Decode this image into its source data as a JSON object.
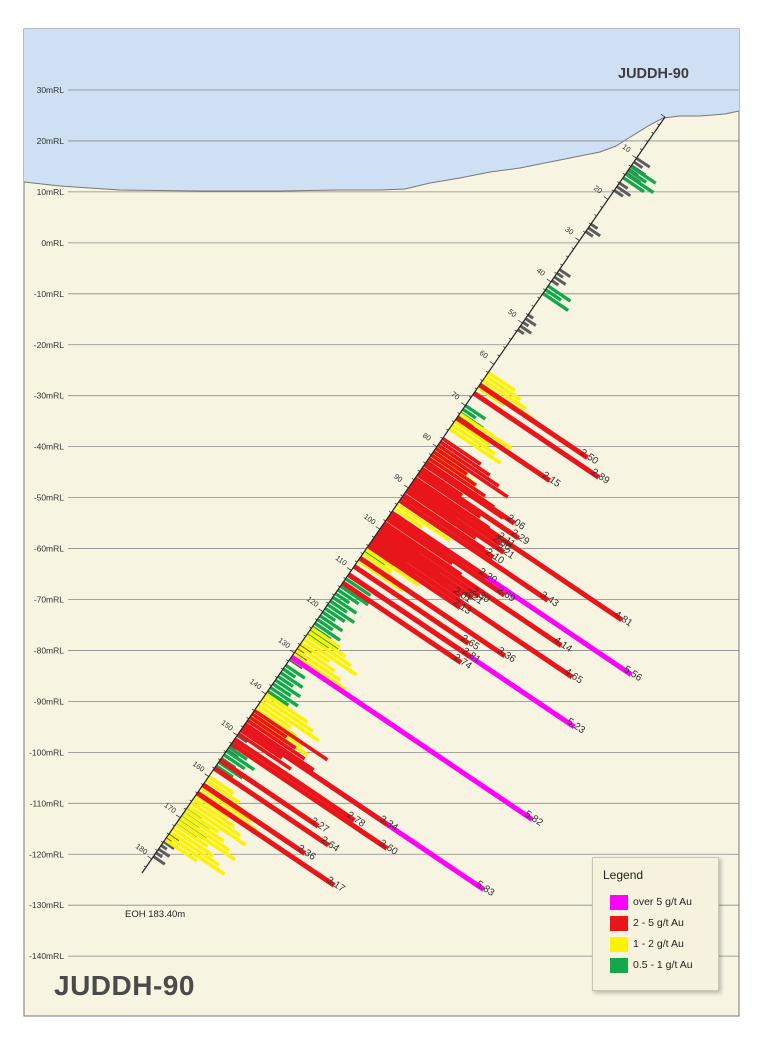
{
  "hole_id": "JUDDH-90",
  "eoh": "EOH 183.40m",
  "rl_labels": [
    "30mRL",
    "20mRL",
    "10mRL",
    "0mRL",
    "-10mRL",
    "-20mRL",
    "-30mRL",
    "-40mRL",
    "-50mRL",
    "-60mRL",
    "-70mRL",
    "-80mRL",
    "-90mRL",
    "-100mRL",
    "-110mRL",
    "-120mRL",
    "-130mRL",
    "-140mRL"
  ],
  "depth_labels": [
    "10",
    "20",
    "30",
    "40",
    "50",
    "60",
    "70",
    "80",
    "90",
    "100",
    "110",
    "120",
    "130",
    "140",
    "150",
    "160",
    "170",
    "180"
  ],
  "legend": {
    "title": "Legend",
    "items": [
      {
        "label": "over 5 g/t Au",
        "color": "#ff00ff"
      },
      {
        "label": "2 - 5 g/t Au",
        "color": "#e8161b"
      },
      {
        "label": "1 - 2 g/t Au",
        "color": "#fff200"
      },
      {
        "label": "0.5 - 1 g/t Au",
        "color": "#13a94b"
      }
    ]
  },
  "colors": {
    "sky": "#cfdff4",
    "ground": "#f7f4e2",
    "magenta": "#ff00ff",
    "red": "#e8161b",
    "yellow": "#fff200",
    "green": "#13a94b",
    "grey": "#5d5d5d"
  },
  "assay_labels": [
    {
      "grade": "over5",
      "depth": 96,
      "value": "5.56"
    },
    {
      "grade": "over5",
      "depth": 111,
      "value": "5.23"
    },
    {
      "grade": "over5",
      "depth": 131,
      "value": "5.82"
    },
    {
      "grade": "over5",
      "depth": 148,
      "value": "5.83"
    },
    {
      "grade": "2to5",
      "depth": 65,
      "value": "2.50"
    },
    {
      "grade": "2to5",
      "depth": 67,
      "value": "2.89"
    },
    {
      "grade": "2to5",
      "depth": 73,
      "value": "2.15"
    },
    {
      "grade": "2to5",
      "depth": 84,
      "value": "2.06"
    },
    {
      "grade": "2to5",
      "depth": 86,
      "value": "2.29"
    },
    {
      "grade": "2to5",
      "depth": 88,
      "value": "2.11"
    },
    {
      "grade": "2to5",
      "depth": 89,
      "value": "2.06"
    },
    {
      "grade": "2to5",
      "depth": 90,
      "value": "2.21"
    },
    {
      "grade": "2to5",
      "depth": 92,
      "value": "2.10"
    },
    {
      "grade": "2to5",
      "depth": 93,
      "value": "3.43"
    },
    {
      "grade": "2to5",
      "depth": 96,
      "value": "2.20"
    },
    {
      "grade": "2to5",
      "depth": 97,
      "value": "2.69"
    },
    {
      "grade": "2to5",
      "depth": 100,
      "value": "2.30"
    },
    {
      "grade": "2to5",
      "depth": 101,
      "value": "2.21"
    },
    {
      "grade": "2to5",
      "depth": 102,
      "value": "2.01"
    },
    {
      "grade": "2to5",
      "depth": 99,
      "value": "4.14"
    },
    {
      "grade": "2to5",
      "depth": 88,
      "value": "4.81"
    },
    {
      "grade": "2to5",
      "depth": 104,
      "value": "2.13"
    },
    {
      "grade": "2to5",
      "depth": 103,
      "value": "4.65"
    },
    {
      "grade": "2to5",
      "depth": 109,
      "value": "2.65"
    },
    {
      "grade": "2to5",
      "depth": 107,
      "value": "3.36"
    },
    {
      "grade": "2to5",
      "depth": 111,
      "value": "2.81"
    },
    {
      "grade": "2to5",
      "depth": 113,
      "value": "2.74"
    },
    {
      "grade": "2to5",
      "depth": 148,
      "value": "3.34"
    },
    {
      "grade": "2to5",
      "depth": 151,
      "value": "2.78"
    },
    {
      "grade": "2to5",
      "depth": 152,
      "value": "3.60"
    },
    {
      "grade": "2to5",
      "depth": 156,
      "value": "2.27"
    },
    {
      "grade": "2to5",
      "depth": 158,
      "value": "2.64"
    },
    {
      "grade": "2to5",
      "depth": 162,
      "value": "2.36"
    },
    {
      "grade": "2to5",
      "depth": 164,
      "value": "3.17"
    }
  ]
}
